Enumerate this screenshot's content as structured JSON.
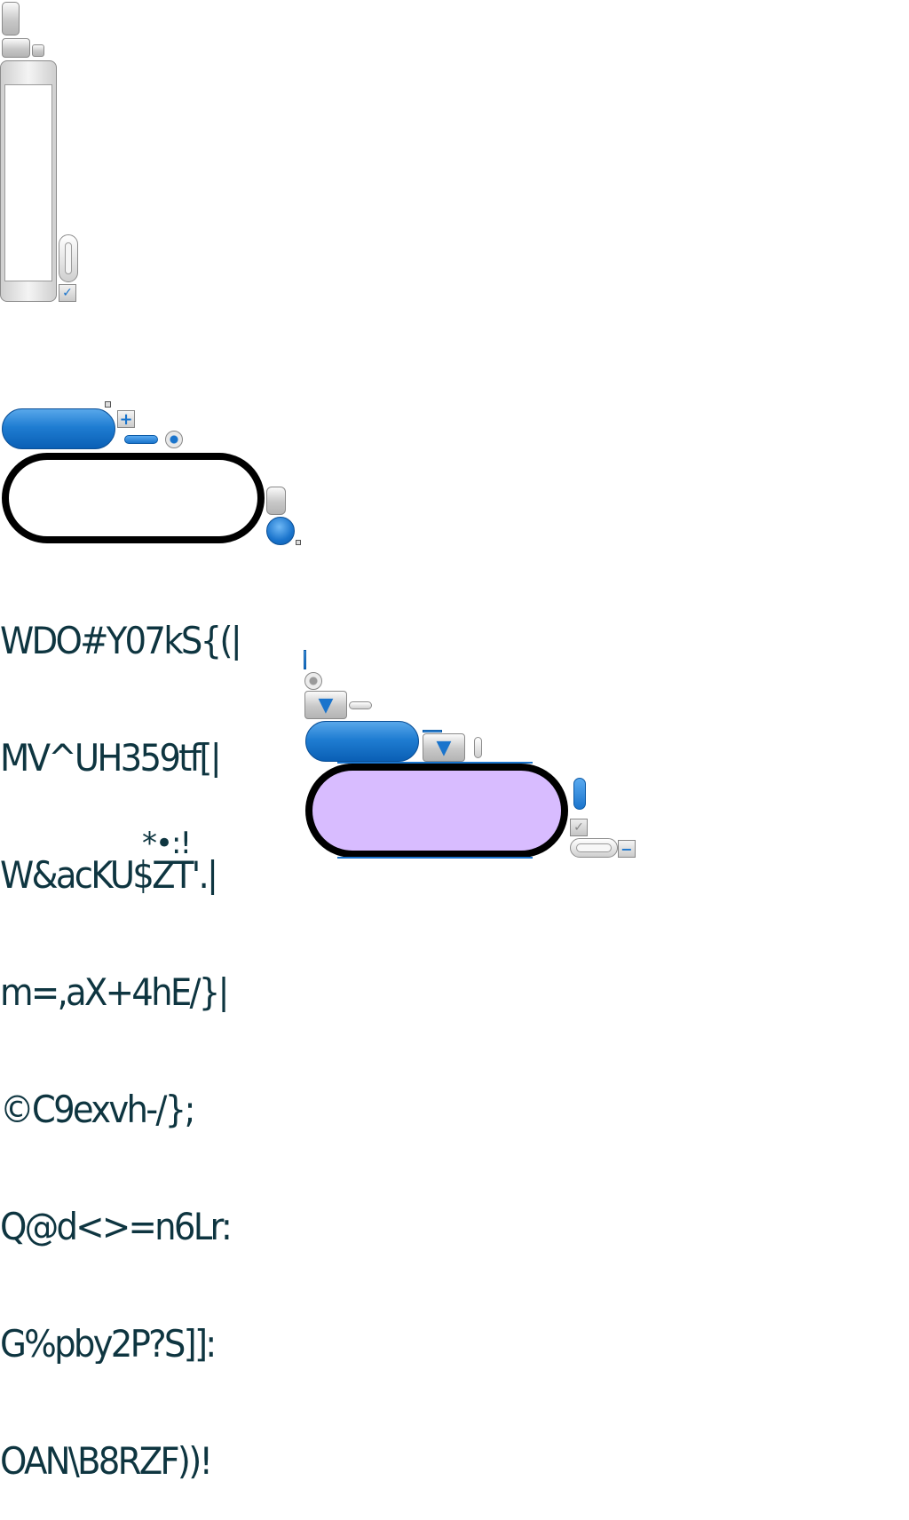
{
  "glyph_rows": [
    "WDO#Y07kS{(|",
    "MV^UH359tf[|",
    "W&acKU$ZT'.|",
    "m=,aX+4hE/}|",
    "©C9exvh-/};",
    "Q@d<>=n6Lr:",
    "G%pby2P?S]]:",
    "OAN\\B8RZF))!"
  ],
  "glyph_row_extra": "*•:!",
  "icons": {
    "plus": "+",
    "minus": "−",
    "check": "✓",
    "down": "▼"
  },
  "colors": {
    "accent_blue": "#1a74cc",
    "glyph_color": "#0e3540",
    "purple_fill": "#d8bcff"
  }
}
